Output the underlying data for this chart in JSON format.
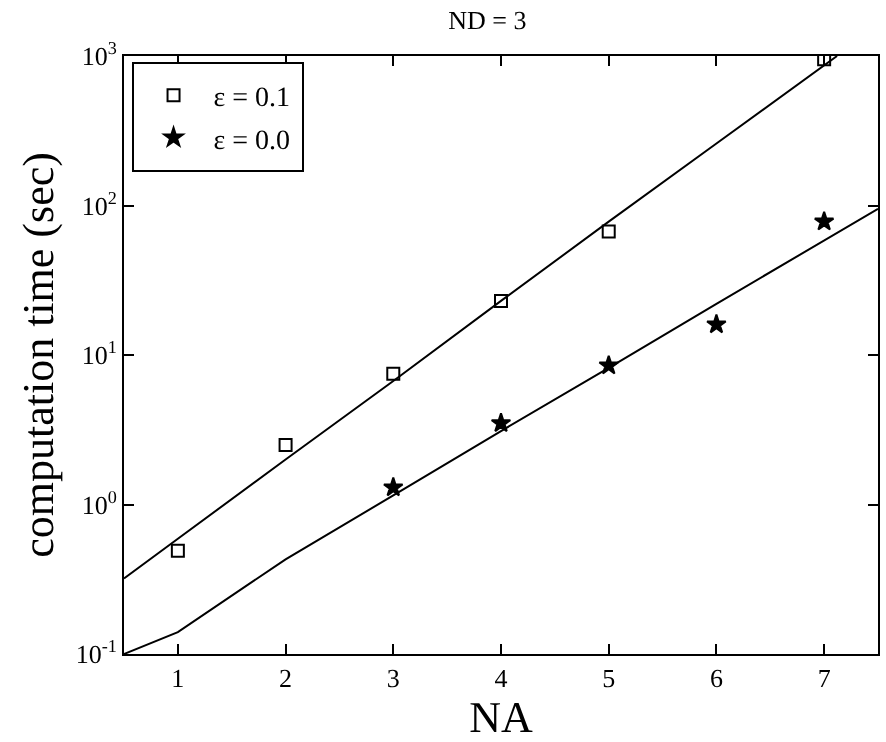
{
  "chart_data": {
    "type": "scatter",
    "title": "ND = 3",
    "xlabel": "NA",
    "ylabel": "computation time (sec)",
    "log": "y",
    "grid": false,
    "legend": "top left",
    "xlim": [
      0.5,
      7.5
    ],
    "xticks": [
      1,
      2,
      3,
      4,
      5,
      6,
      7
    ],
    "ylim": [
      0.1,
      1000
    ],
    "yticks": [
      {
        "value": 0.1,
        "label": "10$^{-1}$"
      },
      {
        "value": 1,
        "label": "10$^{0}$"
      },
      {
        "value": 10,
        "label": "10$^{1}$"
      },
      {
        "value": 100,
        "label": "10$^{2}$"
      },
      {
        "value": 1000,
        "label": "10$^{3}$"
      }
    ],
    "series": [
      {
        "name": "ε = 0.1",
        "marker": "square",
        "color": "#000000",
        "x": [
          1,
          2,
          3,
          4,
          5,
          7
        ],
        "values": [
          0.49,
          2.5,
          7.5,
          23,
          67,
          950
        ]
      },
      {
        "name": "ε = 0.0",
        "marker": "star",
        "color": "#000000",
        "x": [
          3,
          4,
          5,
          6,
          7
        ],
        "values": [
          1.3,
          3.5,
          8.5,
          16,
          78
        ]
      },
      {
        "type": "line",
        "marker": "none",
        "line_style": "solid",
        "color": "#000000",
        "x": [
          0.5,
          1,
          2,
          3,
          4,
          5,
          6,
          7.12
        ],
        "values": [
          0.32,
          0.59,
          2.0,
          6.7,
          23,
          78,
          260,
          1000
        ]
      },
      {
        "type": "line",
        "marker": "none",
        "line_style": "solid",
        "color": "#000000",
        "x": [
          0.5,
          1,
          2,
          3,
          4,
          5,
          6,
          7.5
        ],
        "values": [
          0.1,
          0.14,
          0.43,
          1.15,
          3.1,
          8.2,
          22,
          95
        ]
      }
    ]
  }
}
